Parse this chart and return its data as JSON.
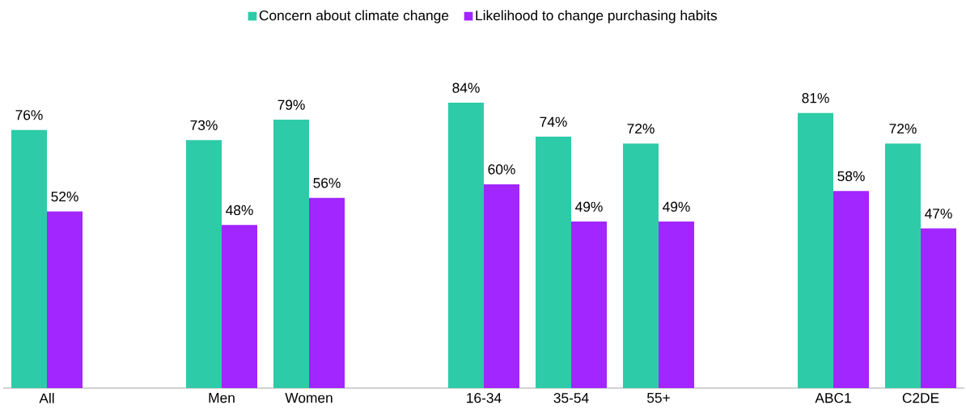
{
  "chart_data": {
    "type": "bar",
    "categories": [
      "All",
      null,
      "Men",
      "Women",
      null,
      "16-34",
      "35-54",
      "55+",
      null,
      "ABC1",
      "C2DE"
    ],
    "series": [
      {
        "name": "Concern about climate change",
        "color": "#2ECBA8",
        "values": [
          76,
          null,
          73,
          79,
          null,
          84,
          74,
          72,
          null,
          81,
          72
        ],
        "value_labels": [
          "76%",
          null,
          "73%",
          "79%",
          null,
          "84%",
          "74%",
          "72%",
          null,
          "81%",
          "72%"
        ]
      },
      {
        "name": "Likelihood to change purchasing habits",
        "color": "#A126FF",
        "values": [
          52,
          null,
          48,
          56,
          null,
          60,
          49,
          49,
          null,
          58,
          47
        ],
        "value_labels": [
          "52%",
          null,
          "48%",
          "56%",
          null,
          "60%",
          "49%",
          "49%",
          null,
          "58%",
          "47%"
        ]
      }
    ],
    "legend": "top"
  }
}
